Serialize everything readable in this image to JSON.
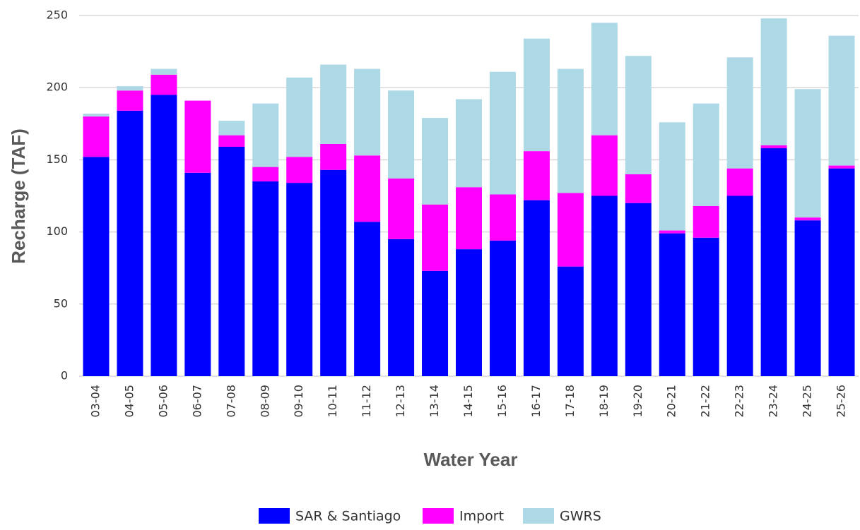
{
  "chart_data": {
    "type": "stacked_bar",
    "xlabel": "Water Year",
    "ylabel": "Recharge (TAF)",
    "categories": [
      "03-04",
      "04-05",
      "05-06",
      "06-07",
      "07-08",
      "08-09",
      "09-10",
      "10-11",
      "11-12",
      "12-13",
      "13-14",
      "14-15",
      "15-16",
      "16-17",
      "17-18",
      "18-19",
      "19-20",
      "20-21",
      "21-22",
      "22-23",
      "23-24",
      "24-25",
      "25-26"
    ],
    "series": [
      {
        "name": "SAR & Santiago",
        "color": "#0000ff",
        "values": [
          152,
          184,
          195,
          141,
          159,
          135,
          134,
          143,
          107,
          95,
          73,
          88,
          94,
          122,
          76,
          125,
          120,
          99,
          96,
          125,
          158,
          108,
          144
        ]
      },
      {
        "name": "Import",
        "color": "#ff00ff",
        "values": [
          28,
          14,
          14,
          50,
          8,
          10,
          18,
          18,
          46,
          42,
          46,
          43,
          32,
          34,
          51,
          42,
          20,
          2,
          22,
          19,
          2,
          2,
          2
        ]
      },
      {
        "name": "GWRS",
        "color": "#add8e6",
        "values": [
          2,
          3,
          4,
          0,
          10,
          44,
          55,
          55,
          60,
          61,
          60,
          61,
          85,
          78,
          86,
          78,
          82,
          75,
          71,
          77,
          88,
          89,
          90
        ]
      }
    ],
    "ylim": [
      0,
      250
    ],
    "yticks": [
      0,
      50,
      100,
      150,
      200,
      250
    ],
    "grid": true,
    "legend": "bottom"
  }
}
